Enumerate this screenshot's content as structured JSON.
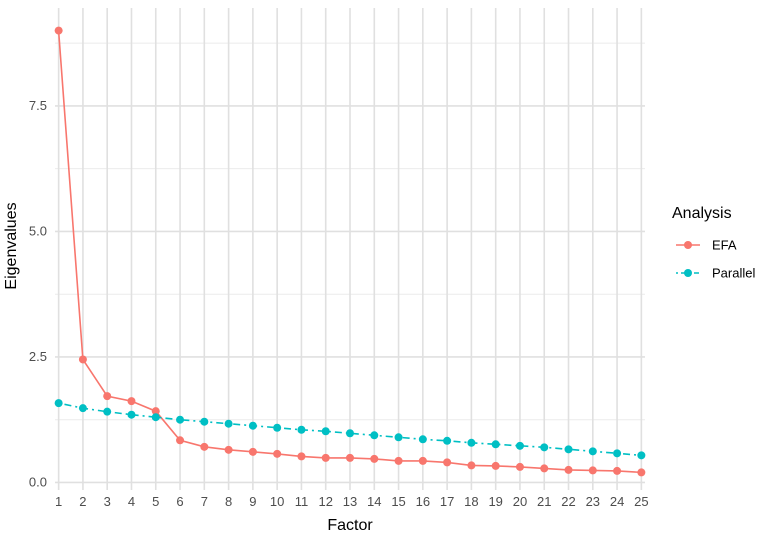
{
  "chart_data": {
    "type": "line",
    "xlabel": "Factor",
    "ylabel": "Eigenvalues",
    "x": [
      1,
      2,
      3,
      4,
      5,
      6,
      7,
      8,
      9,
      10,
      11,
      12,
      13,
      14,
      15,
      16,
      17,
      18,
      19,
      20,
      21,
      22,
      23,
      24,
      25
    ],
    "xlim": [
      0.85,
      25.15
    ],
    "ylim": [
      -0.15,
      9.45
    ],
    "yticks": [
      0.0,
      2.5,
      5.0,
      7.5
    ],
    "ytick_labels": [
      "0.0",
      "2.5",
      "5.0",
      "7.5"
    ],
    "grid": true,
    "legend": {
      "title": "Analysis",
      "position": "right"
    },
    "series": [
      {
        "name": "EFA",
        "color": "#F8766D",
        "linestyle": "solid",
        "values": [
          9.0,
          2.45,
          1.72,
          1.62,
          1.42,
          0.84,
          0.71,
          0.65,
          0.61,
          0.57,
          0.52,
          0.49,
          0.49,
          0.47,
          0.43,
          0.43,
          0.4,
          0.34,
          0.33,
          0.31,
          0.28,
          0.25,
          0.24,
          0.23,
          0.2
        ]
      },
      {
        "name": "Parallel",
        "color": "#00BFC4",
        "linestyle": "dotdash",
        "values": [
          1.58,
          1.48,
          1.41,
          1.35,
          1.3,
          1.25,
          1.21,
          1.17,
          1.13,
          1.09,
          1.05,
          1.02,
          0.98,
          0.94,
          0.9,
          0.86,
          0.83,
          0.79,
          0.76,
          0.73,
          0.7,
          0.66,
          0.62,
          0.58,
          0.54
        ]
      }
    ]
  }
}
